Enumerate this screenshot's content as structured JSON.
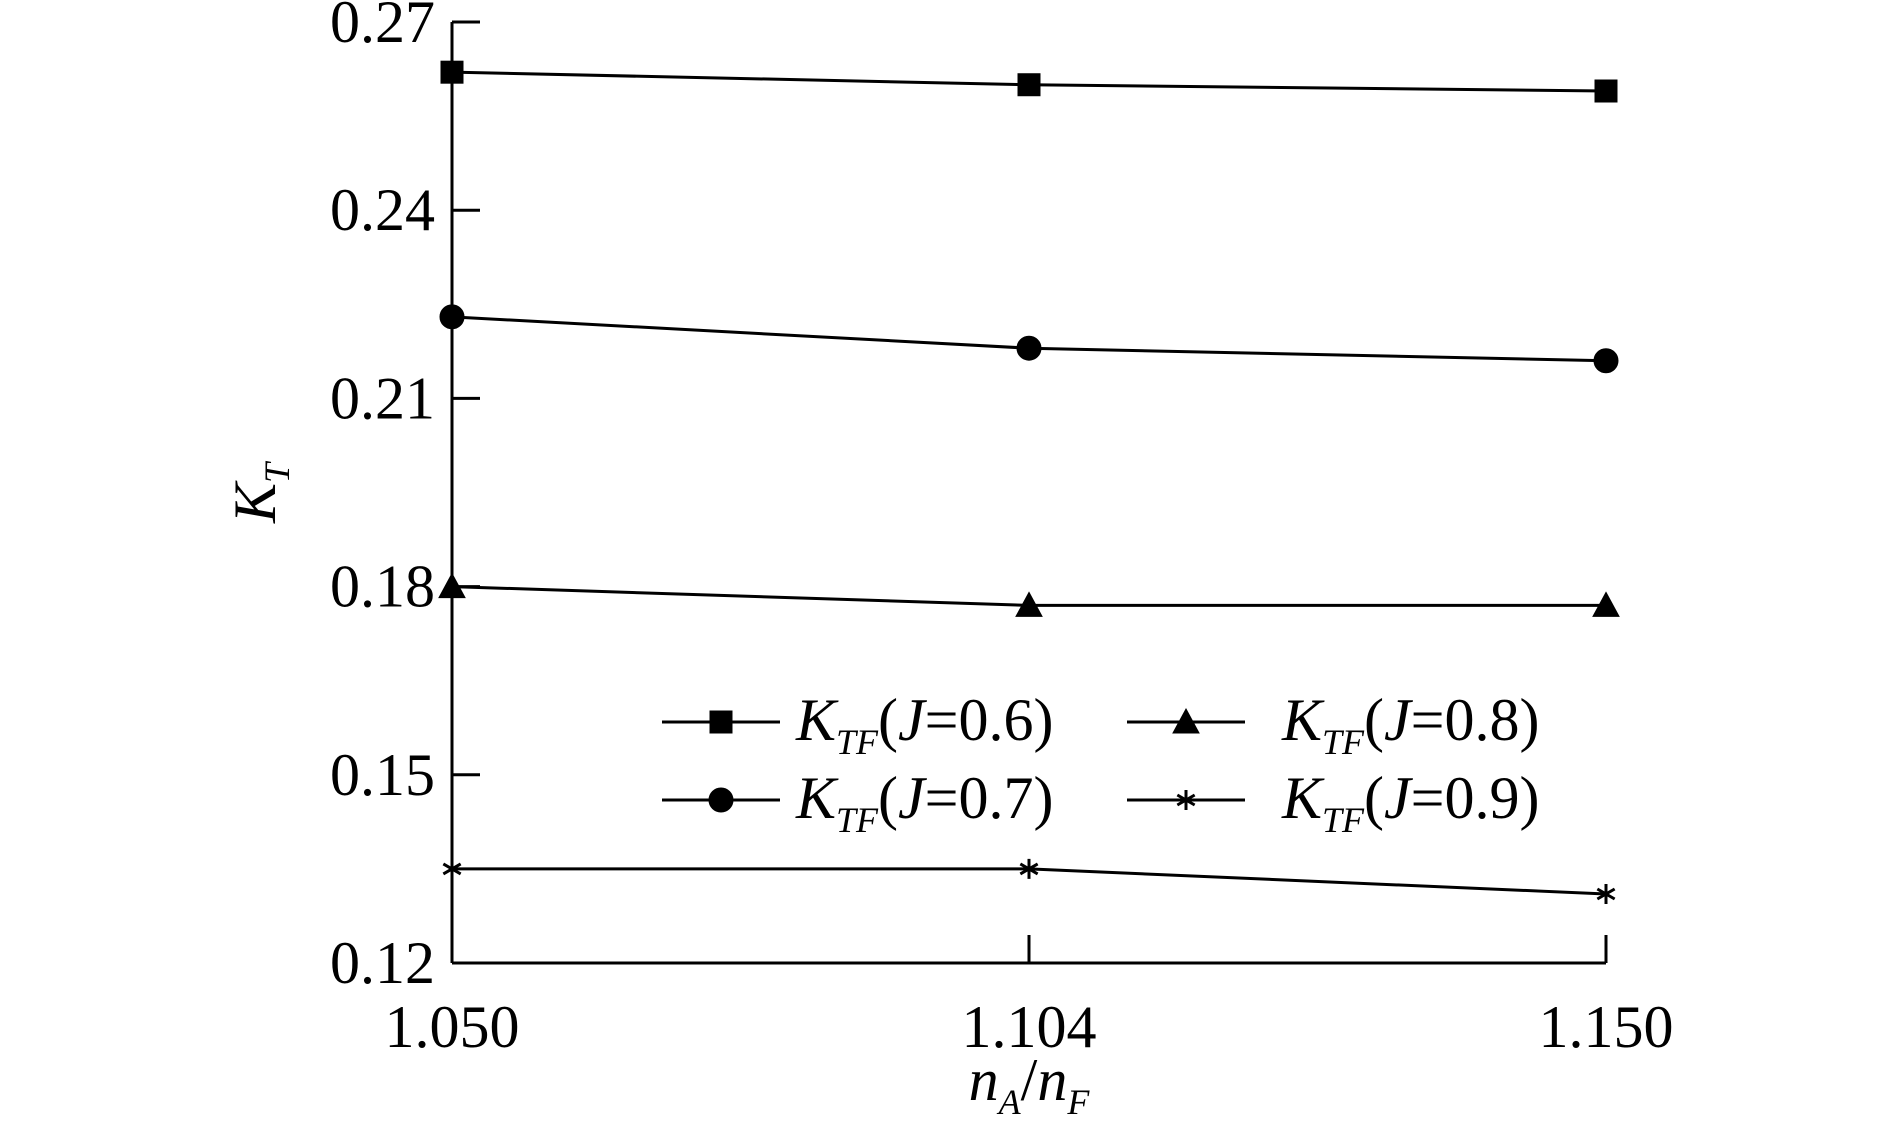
{
  "chart_data": {
    "type": "line",
    "xlabel": "n_{A}/n_{F}",
    "ylabel": "K_{T}",
    "categories": [
      "1.050",
      "1.104",
      "1.150"
    ],
    "ylim": [
      0.12,
      0.27
    ],
    "yticks": [
      0.12,
      0.15,
      0.18,
      0.21,
      0.24,
      0.27
    ],
    "grid": false,
    "series": [
      {
        "name": "K_{TF}(J=0.6)",
        "color": "#000000",
        "marker": "square",
        "values": [
          0.262,
          0.26,
          0.259
        ]
      },
      {
        "name": "K_{TF}(J=0.7)",
        "color": "#000000",
        "marker": "circle",
        "values": [
          0.223,
          0.218,
          0.216
        ]
      },
      {
        "name": "K_{TF}(J=0.8)",
        "color": "#000000",
        "marker": "triangle",
        "values": [
          0.18,
          0.177,
          0.177
        ]
      },
      {
        "name": "K_{TF}(J=0.9)",
        "color": "#000000",
        "marker": "asterisk",
        "values": [
          0.135,
          0.135,
          0.131
        ]
      }
    ]
  }
}
